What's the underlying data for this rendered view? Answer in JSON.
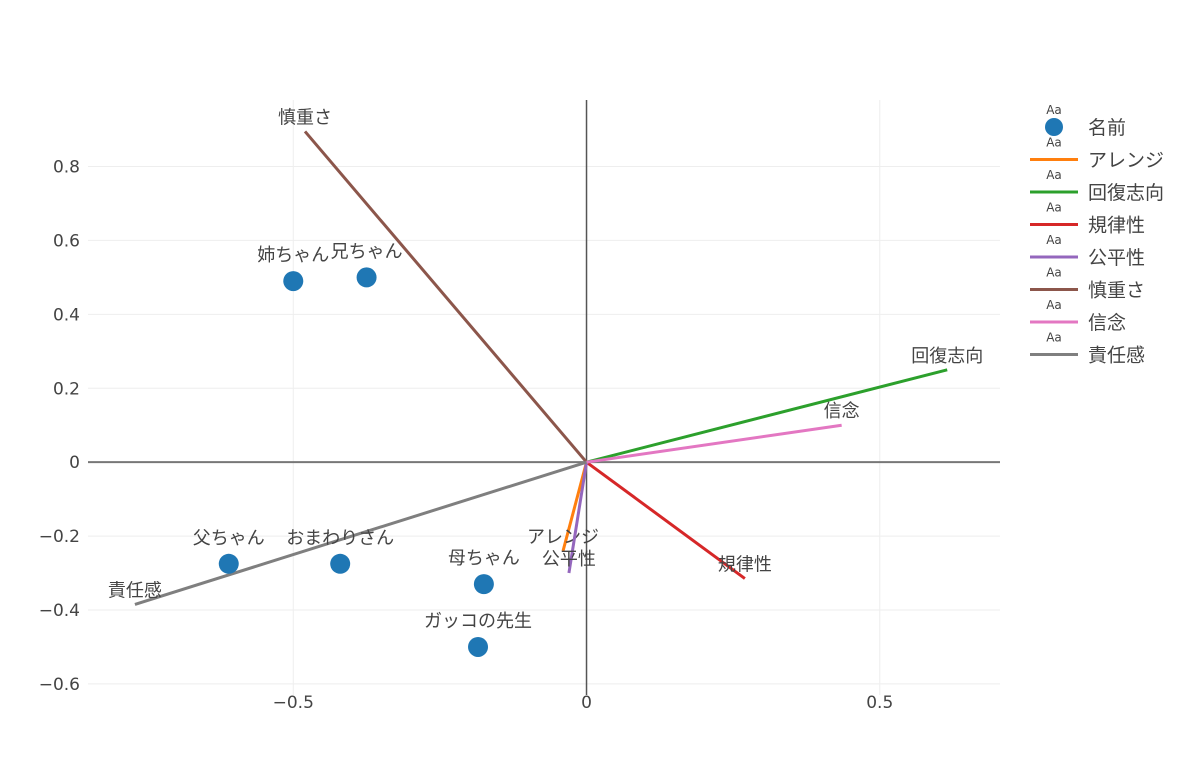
{
  "chart_data": {
    "type": "scatter",
    "xlim": [
      -0.85,
      0.705
    ],
    "ylim": [
      -0.63,
      0.98
    ],
    "xticks": [
      {
        "value": -0.5,
        "label": "−0.5"
      },
      {
        "value": 0,
        "label": "0"
      },
      {
        "value": 0.5,
        "label": "0.5"
      }
    ],
    "yticks": [
      {
        "value": -0.6,
        "label": "−0.6"
      },
      {
        "value": -0.4,
        "label": "−0.4"
      },
      {
        "value": -0.2,
        "label": "−0.2"
      },
      {
        "value": 0,
        "label": "0"
      },
      {
        "value": 0.2,
        "label": "0.2"
      },
      {
        "value": 0.4,
        "label": "0.4"
      },
      {
        "value": 0.6,
        "label": "0.6"
      },
      {
        "value": 0.8,
        "label": "0.8"
      }
    ],
    "grid": true,
    "legend_position": "top-right",
    "points": {
      "name": "名前",
      "color": "#1f77b4",
      "items": [
        {
          "label": "姉ちゃん",
          "x": -0.5,
          "y": 0.49
        },
        {
          "label": "兄ちゃん",
          "x": -0.375,
          "y": 0.5
        },
        {
          "label": "父ちゃん",
          "x": -0.61,
          "y": -0.275
        },
        {
          "label": "おまわりさん",
          "x": -0.42,
          "y": -0.275
        },
        {
          "label": "母ちゃん",
          "x": -0.175,
          "y": -0.33
        },
        {
          "label": "ガッコの先生",
          "x": -0.185,
          "y": -0.5
        }
      ]
    },
    "vectors": [
      {
        "name": "アレンジ",
        "color": "#ff7f0e",
        "x": -0.04,
        "y": -0.24
      },
      {
        "name": "回復志向",
        "color": "#2ca02c",
        "x": 0.615,
        "y": 0.25
      },
      {
        "name": "規律性",
        "color": "#d62728",
        "x": 0.27,
        "y": -0.315
      },
      {
        "name": "公平性",
        "color": "#9467bd",
        "x": -0.03,
        "y": -0.3
      },
      {
        "name": "慎重さ",
        "color": "#8c564b",
        "x": -0.48,
        "y": 0.895
      },
      {
        "name": "信念",
        "color": "#e377c2",
        "x": 0.435,
        "y": 0.1
      },
      {
        "name": "責任感",
        "color": "#7f7f7f",
        "x": -0.77,
        "y": -0.385
      }
    ]
  },
  "legend": {
    "aa_glyph": "Aa",
    "items": [
      "名前",
      "アレンジ",
      "回復志向",
      "規律性",
      "公平性",
      "慎重さ",
      "信念",
      "責任感"
    ]
  }
}
